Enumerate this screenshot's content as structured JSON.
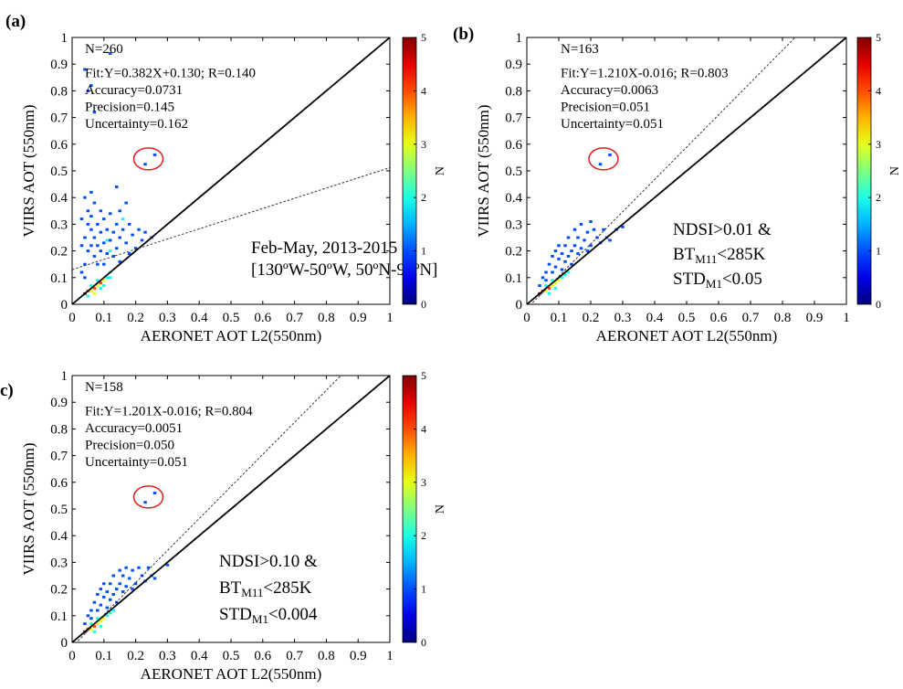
{
  "chart_data": [
    {
      "type": "heatmap",
      "panel_label": "(a)",
      "xlabel": "AERONET AOT L2(550nm)",
      "ylabel": "VIIRS AOT (550nm)",
      "xlim": [
        0,
        1
      ],
      "ylim": [
        0,
        1
      ],
      "x_ticks": [
        "0",
        "0.1",
        "0.2",
        "0.3",
        "0.4",
        "0.5",
        "0.6",
        "0.7",
        "0.8",
        "0.9",
        "1"
      ],
      "y_ticks": [
        "0",
        "0.1",
        "0.2",
        "0.3",
        "0.4",
        "0.5",
        "0.6",
        "0.7",
        "0.8",
        "0.9",
        "1"
      ],
      "stats": [
        "N=260",
        "Fit:Y=0.382X+0.130; R=0.140",
        "Accuracy=0.0731",
        "Precision=0.145",
        "Uncertainty=0.162"
      ],
      "notes": [
        "Feb-May, 2013-2015",
        "[130ºW-50ºW, 50ºN-90ºN]"
      ],
      "fit": {
        "slope": 0.382,
        "intercept": 0.13
      },
      "one_to_one_line": true,
      "circle_center": [
        0.24,
        0.545
      ],
      "colorbar": {
        "label": "N",
        "range": [
          0,
          5
        ],
        "ticks": [
          "0",
          "1",
          "2",
          "3",
          "4",
          "5"
        ]
      },
      "cells": [
        [
          0.04,
          0.04,
          5
        ],
        [
          0.05,
          0.05,
          4
        ],
        [
          0.06,
          0.05,
          3
        ],
        [
          0.07,
          0.06,
          4
        ],
        [
          0.08,
          0.07,
          3
        ],
        [
          0.09,
          0.08,
          4
        ],
        [
          0.1,
          0.09,
          3
        ],
        [
          0.11,
          0.1,
          2
        ],
        [
          0.06,
          0.07,
          2
        ],
        [
          0.08,
          0.09,
          2
        ],
        [
          0.05,
          0.03,
          2
        ],
        [
          0.07,
          0.04,
          3
        ],
        [
          0.09,
          0.06,
          2
        ],
        [
          0.1,
          0.07,
          2
        ],
        [
          0.12,
          0.1,
          2
        ],
        [
          0.12,
          0.12,
          2
        ],
        [
          0.04,
          0.1,
          1
        ],
        [
          0.04,
          0.15,
          1
        ],
        [
          0.05,
          0.2,
          1
        ],
        [
          0.04,
          0.25,
          1
        ],
        [
          0.05,
          0.3,
          1
        ],
        [
          0.05,
          0.35,
          1
        ],
        [
          0.04,
          0.4,
          1
        ],
        [
          0.06,
          0.42,
          1
        ],
        [
          0.06,
          0.33,
          1
        ],
        [
          0.06,
          0.28,
          1
        ],
        [
          0.06,
          0.22,
          1
        ],
        [
          0.07,
          0.18,
          1
        ],
        [
          0.07,
          0.25,
          1
        ],
        [
          0.07,
          0.38,
          1
        ],
        [
          0.08,
          0.3,
          1
        ],
        [
          0.08,
          0.22,
          1
        ],
        [
          0.08,
          0.15,
          1
        ],
        [
          0.09,
          0.35,
          1
        ],
        [
          0.09,
          0.27,
          1
        ],
        [
          0.09,
          0.2,
          1
        ],
        [
          0.1,
          0.32,
          1
        ],
        [
          0.1,
          0.23,
          1
        ],
        [
          0.1,
          0.15,
          1
        ],
        [
          0.11,
          0.28,
          1
        ],
        [
          0.11,
          0.19,
          1
        ],
        [
          0.12,
          0.34,
          1
        ],
        [
          0.12,
          0.24,
          1
        ],
        [
          0.13,
          0.27,
          1
        ],
        [
          0.13,
          0.18,
          1
        ],
        [
          0.14,
          0.3,
          1
        ],
        [
          0.14,
          0.21,
          1
        ],
        [
          0.15,
          0.25,
          1
        ],
        [
          0.15,
          0.16,
          1
        ],
        [
          0.16,
          0.28,
          1
        ],
        [
          0.17,
          0.23,
          1
        ],
        [
          0.18,
          0.3,
          1
        ],
        [
          0.18,
          0.19,
          1
        ],
        [
          0.19,
          0.26,
          1
        ],
        [
          0.2,
          0.21,
          1
        ],
        [
          0.21,
          0.28,
          1
        ],
        [
          0.22,
          0.24,
          1
        ],
        [
          0.23,
          0.27,
          1
        ],
        [
          0.25,
          0.25,
          1
        ],
        [
          0.15,
          0.35,
          1
        ],
        [
          0.17,
          0.38,
          1
        ],
        [
          0.14,
          0.44,
          1
        ],
        [
          0.16,
          0.32,
          2
        ],
        [
          0.12,
          0.2,
          2
        ],
        [
          0.11,
          0.24,
          2
        ],
        [
          0.03,
          0.32,
          1
        ],
        [
          0.03,
          0.22,
          1
        ],
        [
          0.03,
          0.12,
          1
        ],
        [
          0.04,
          0.88,
          1
        ],
        [
          0.06,
          0.82,
          1
        ],
        [
          0.07,
          0.72,
          1
        ],
        [
          0.05,
          0.8,
          1
        ],
        [
          0.12,
          0.94,
          1
        ],
        [
          0.23,
          0.525,
          1
        ],
        [
          0.26,
          0.56,
          1
        ]
      ]
    },
    {
      "type": "heatmap",
      "panel_label": "(b)",
      "xlabel": "AERONET AOT L2(550nm)",
      "ylabel": "VIIRS AOT (550nm)",
      "xlim": [
        0,
        1
      ],
      "ylim": [
        0,
        1
      ],
      "x_ticks": [
        "0",
        "0.1",
        "0.2",
        "0.3",
        "0.4",
        "0.5",
        "0.6",
        "0.7",
        "0.8",
        "0.9",
        "1"
      ],
      "y_ticks": [
        "0",
        "0.1",
        "0.2",
        "0.3",
        "0.4",
        "0.5",
        "0.6",
        "0.7",
        "0.8",
        "0.9",
        "1"
      ],
      "stats": [
        "N=163",
        "Fit:Y=1.210X-0.016; R=0.803",
        "Accuracy=0.0063",
        "Precision=0.051",
        "Uncertainty=0.051"
      ],
      "notes": [
        [
          "NDSI>0.01 &"
        ],
        [
          "BT",
          "M11",
          "<285K"
        ],
        [
          "STD",
          "M1",
          "<0.05"
        ]
      ],
      "fit": {
        "slope": 1.21,
        "intercept": -0.016
      },
      "one_to_one_line": true,
      "circle_center": [
        0.24,
        0.545
      ],
      "colorbar": {
        "label": "N",
        "range": [
          0,
          5
        ],
        "ticks": [
          "0",
          "1",
          "2",
          "3",
          "4",
          "5"
        ]
      },
      "cells": [
        [
          0.04,
          0.04,
          5
        ],
        [
          0.05,
          0.05,
          4
        ],
        [
          0.06,
          0.05,
          3
        ],
        [
          0.07,
          0.06,
          4
        ],
        [
          0.08,
          0.07,
          3
        ],
        [
          0.09,
          0.08,
          3
        ],
        [
          0.1,
          0.09,
          3
        ],
        [
          0.11,
          0.1,
          2
        ],
        [
          0.06,
          0.07,
          2
        ],
        [
          0.08,
          0.09,
          2
        ],
        [
          0.07,
          0.04,
          2
        ],
        [
          0.09,
          0.06,
          2
        ],
        [
          0.12,
          0.11,
          2
        ],
        [
          0.13,
          0.12,
          2
        ],
        [
          0.05,
          0.1,
          1
        ],
        [
          0.06,
          0.12,
          1
        ],
        [
          0.07,
          0.15,
          1
        ],
        [
          0.08,
          0.12,
          1
        ],
        [
          0.08,
          0.18,
          1
        ],
        [
          0.09,
          0.14,
          1
        ],
        [
          0.09,
          0.2,
          1
        ],
        [
          0.1,
          0.17,
          1
        ],
        [
          0.1,
          0.22,
          1
        ],
        [
          0.11,
          0.13,
          1
        ],
        [
          0.11,
          0.19,
          1
        ],
        [
          0.12,
          0.16,
          1
        ],
        [
          0.12,
          0.22,
          1
        ],
        [
          0.13,
          0.18,
          1
        ],
        [
          0.13,
          0.25,
          1
        ],
        [
          0.14,
          0.2,
          1
        ],
        [
          0.14,
          0.15,
          1
        ],
        [
          0.15,
          0.22,
          1
        ],
        [
          0.15,
          0.28,
          1
        ],
        [
          0.16,
          0.19,
          1
        ],
        [
          0.16,
          0.25,
          1
        ],
        [
          0.17,
          0.21,
          1
        ],
        [
          0.17,
          0.3,
          1
        ],
        [
          0.18,
          0.24,
          1
        ],
        [
          0.19,
          0.27,
          1
        ],
        [
          0.19,
          0.2,
          1
        ],
        [
          0.2,
          0.22,
          1
        ],
        [
          0.21,
          0.28,
          1
        ],
        [
          0.22,
          0.25,
          1
        ],
        [
          0.23,
          0.23,
          1
        ],
        [
          0.25,
          0.25,
          1
        ],
        [
          0.26,
          0.24,
          1
        ],
        [
          0.28,
          0.28,
          1
        ],
        [
          0.3,
          0.29,
          1
        ],
        [
          0.2,
          0.31,
          1
        ],
        [
          0.24,
          0.28,
          1
        ],
        [
          0.04,
          0.07,
          1
        ],
        [
          0.06,
          0.09,
          1
        ],
        [
          0.23,
          0.525,
          1
        ],
        [
          0.26,
          0.56,
          1
        ]
      ]
    },
    {
      "type": "heatmap",
      "panel_label": "c)",
      "xlabel": "AERONET AOT L2(550nm)",
      "ylabel": "VIIRS AOT (550nm)",
      "xlim": [
        0,
        1
      ],
      "ylim": [
        0,
        1
      ],
      "x_ticks": [
        "0",
        "0.1",
        "0.2",
        "0.3",
        "0.4",
        "0.5",
        "0.6",
        "0.7",
        "0.8",
        "0.9",
        "1"
      ],
      "y_ticks": [
        "0",
        "0.1",
        "0.2",
        "0.3",
        "0.4",
        "0.5",
        "0.6",
        "0.7",
        "0.8",
        "0.9",
        "1"
      ],
      "stats": [
        "N=158",
        "Fit:Y=1.201X-0.016; R=0.804",
        "Accuracy=0.0051",
        "Precision=0.050",
        "Uncertainty=0.051"
      ],
      "notes": [
        [
          "NDSI>0.10 &"
        ],
        [
          "BT",
          "M11",
          "<285K"
        ],
        [
          "STD",
          "M1",
          "<0.004"
        ]
      ],
      "fit": {
        "slope": 1.201,
        "intercept": -0.016
      },
      "one_to_one_line": true,
      "circle_center": [
        0.24,
        0.545
      ],
      "colorbar": {
        "label": "N",
        "range": [
          0,
          5
        ],
        "ticks": [
          "0",
          "1",
          "2",
          "3",
          "4",
          "5"
        ]
      },
      "cells": [
        [
          0.04,
          0.04,
          5
        ],
        [
          0.05,
          0.05,
          4
        ],
        [
          0.06,
          0.05,
          3
        ],
        [
          0.07,
          0.06,
          4
        ],
        [
          0.08,
          0.07,
          3
        ],
        [
          0.09,
          0.08,
          3
        ],
        [
          0.1,
          0.09,
          3
        ],
        [
          0.11,
          0.1,
          2
        ],
        [
          0.06,
          0.07,
          2
        ],
        [
          0.08,
          0.09,
          2
        ],
        [
          0.07,
          0.04,
          2
        ],
        [
          0.09,
          0.06,
          2
        ],
        [
          0.12,
          0.11,
          2
        ],
        [
          0.13,
          0.12,
          2
        ],
        [
          0.05,
          0.1,
          1
        ],
        [
          0.06,
          0.12,
          1
        ],
        [
          0.07,
          0.15,
          1
        ],
        [
          0.08,
          0.12,
          1
        ],
        [
          0.08,
          0.18,
          1
        ],
        [
          0.09,
          0.14,
          1
        ],
        [
          0.09,
          0.2,
          1
        ],
        [
          0.1,
          0.17,
          1
        ],
        [
          0.1,
          0.22,
          1
        ],
        [
          0.11,
          0.13,
          1
        ],
        [
          0.11,
          0.19,
          1
        ],
        [
          0.12,
          0.16,
          1
        ],
        [
          0.12,
          0.22,
          1
        ],
        [
          0.13,
          0.18,
          1
        ],
        [
          0.13,
          0.25,
          1
        ],
        [
          0.14,
          0.2,
          1
        ],
        [
          0.14,
          0.15,
          1
        ],
        [
          0.15,
          0.22,
          1
        ],
        [
          0.15,
          0.27,
          1
        ],
        [
          0.16,
          0.19,
          1
        ],
        [
          0.16,
          0.25,
          1
        ],
        [
          0.17,
          0.21,
          1
        ],
        [
          0.17,
          0.28,
          1
        ],
        [
          0.18,
          0.24,
          1
        ],
        [
          0.19,
          0.27,
          1
        ],
        [
          0.19,
          0.2,
          1
        ],
        [
          0.2,
          0.22,
          1
        ],
        [
          0.21,
          0.28,
          1
        ],
        [
          0.22,
          0.25,
          1
        ],
        [
          0.23,
          0.23,
          1
        ],
        [
          0.25,
          0.25,
          1
        ],
        [
          0.26,
          0.24,
          1
        ],
        [
          0.3,
          0.29,
          1
        ],
        [
          0.24,
          0.28,
          1
        ],
        [
          0.04,
          0.07,
          1
        ],
        [
          0.06,
          0.09,
          1
        ],
        [
          0.23,
          0.525,
          1
        ],
        [
          0.26,
          0.56,
          1
        ]
      ]
    }
  ]
}
